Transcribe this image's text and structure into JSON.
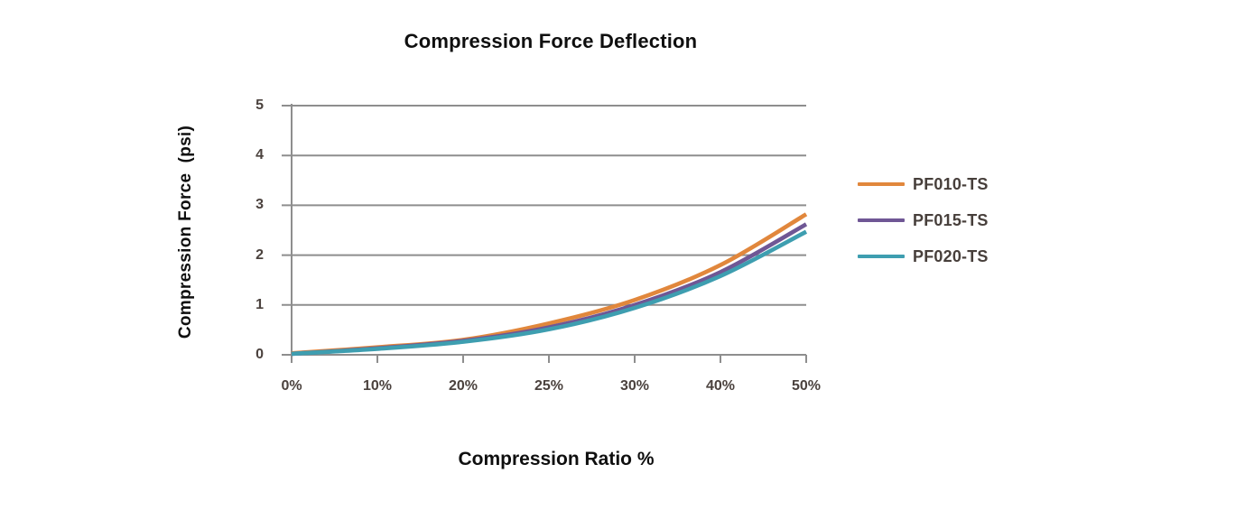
{
  "chart_data": {
    "type": "line",
    "title": "Compression Force Deflection",
    "xlabel": "Compression Ratio %",
    "ylabel": "Compression Force  (psi)",
    "categories": [
      "0%",
      "10%",
      "20%",
      "25%",
      "30%",
      "40%",
      "50%"
    ],
    "y_ticks": [
      0,
      1,
      2,
      3,
      4,
      5
    ],
    "ylim": [
      0,
      5
    ],
    "grid": "horizontal-only",
    "legend_position": "right-of-plot",
    "axis_color": "#8e8e8e",
    "tick_label_color": "#4b423e",
    "title_color": "#0f0f0f",
    "series": [
      {
        "name": "PF010-TS",
        "color": "#e1873c",
        "values": [
          0.03,
          0.15,
          0.3,
          0.63,
          1.1,
          1.8,
          2.82
        ]
      },
      {
        "name": "PF015-TS",
        "color": "#6f5795",
        "values": [
          0.02,
          0.13,
          0.28,
          0.55,
          1.0,
          1.66,
          2.62
        ]
      },
      {
        "name": "PF020-TS",
        "color": "#3e9eb0",
        "values": [
          0.02,
          0.12,
          0.26,
          0.51,
          0.94,
          1.58,
          2.47
        ]
      }
    ]
  }
}
